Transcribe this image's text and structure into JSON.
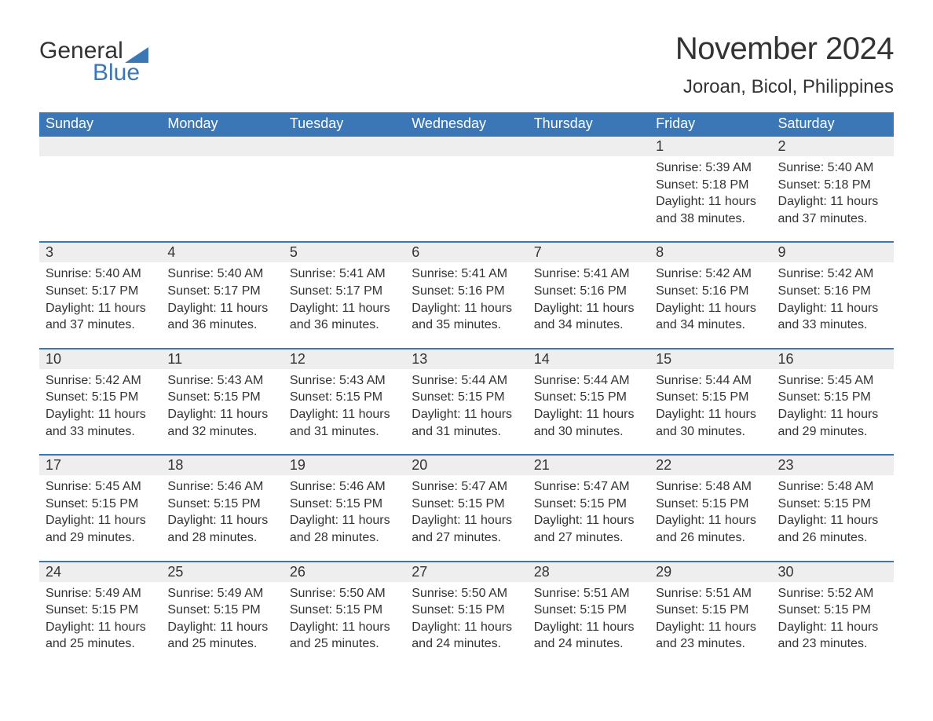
{
  "logo": {
    "word1": "General",
    "word2": "Blue"
  },
  "title": "November 2024",
  "location": "Joroan, Bicol, Philippines",
  "colors": {
    "header_bg": "#3b77b7",
    "header_text": "#ffffff",
    "daynum_bg": "#eeeeee",
    "daynum_border": "#3b77b7",
    "body_text": "#333333",
    "logo_blue": "#3b77b7",
    "page_bg": "#ffffff"
  },
  "typography": {
    "title_fontsize": 40,
    "location_fontsize": 24,
    "header_fontsize": 18,
    "daynum_fontsize": 18,
    "cell_fontsize": 16
  },
  "columns": [
    "Sunday",
    "Monday",
    "Tuesday",
    "Wednesday",
    "Thursday",
    "Friday",
    "Saturday"
  ],
  "weeks": [
    [
      null,
      null,
      null,
      null,
      null,
      {
        "day": "1",
        "sunrise": "5:39 AM",
        "sunset": "5:18 PM",
        "daylight_l1": "11 hours",
        "daylight_l2": "and 38 minutes."
      },
      {
        "day": "2",
        "sunrise": "5:40 AM",
        "sunset": "5:18 PM",
        "daylight_l1": "11 hours",
        "daylight_l2": "and 37 minutes."
      }
    ],
    [
      {
        "day": "3",
        "sunrise": "5:40 AM",
        "sunset": "5:17 PM",
        "daylight_l1": "11 hours",
        "daylight_l2": "and 37 minutes."
      },
      {
        "day": "4",
        "sunrise": "5:40 AM",
        "sunset": "5:17 PM",
        "daylight_l1": "11 hours",
        "daylight_l2": "and 36 minutes."
      },
      {
        "day": "5",
        "sunrise": "5:41 AM",
        "sunset": "5:17 PM",
        "daylight_l1": "11 hours",
        "daylight_l2": "and 36 minutes."
      },
      {
        "day": "6",
        "sunrise": "5:41 AM",
        "sunset": "5:16 PM",
        "daylight_l1": "11 hours",
        "daylight_l2": "and 35 minutes."
      },
      {
        "day": "7",
        "sunrise": "5:41 AM",
        "sunset": "5:16 PM",
        "daylight_l1": "11 hours",
        "daylight_l2": "and 34 minutes."
      },
      {
        "day": "8",
        "sunrise": "5:42 AM",
        "sunset": "5:16 PM",
        "daylight_l1": "11 hours",
        "daylight_l2": "and 34 minutes."
      },
      {
        "day": "9",
        "sunrise": "5:42 AM",
        "sunset": "5:16 PM",
        "daylight_l1": "11 hours",
        "daylight_l2": "and 33 minutes."
      }
    ],
    [
      {
        "day": "10",
        "sunrise": "5:42 AM",
        "sunset": "5:15 PM",
        "daylight_l1": "11 hours",
        "daylight_l2": "and 33 minutes."
      },
      {
        "day": "11",
        "sunrise": "5:43 AM",
        "sunset": "5:15 PM",
        "daylight_l1": "11 hours",
        "daylight_l2": "and 32 minutes."
      },
      {
        "day": "12",
        "sunrise": "5:43 AM",
        "sunset": "5:15 PM",
        "daylight_l1": "11 hours",
        "daylight_l2": "and 31 minutes."
      },
      {
        "day": "13",
        "sunrise": "5:44 AM",
        "sunset": "5:15 PM",
        "daylight_l1": "11 hours",
        "daylight_l2": "and 31 minutes."
      },
      {
        "day": "14",
        "sunrise": "5:44 AM",
        "sunset": "5:15 PM",
        "daylight_l1": "11 hours",
        "daylight_l2": "and 30 minutes."
      },
      {
        "day": "15",
        "sunrise": "5:44 AM",
        "sunset": "5:15 PM",
        "daylight_l1": "11 hours",
        "daylight_l2": "and 30 minutes."
      },
      {
        "day": "16",
        "sunrise": "5:45 AM",
        "sunset": "5:15 PM",
        "daylight_l1": "11 hours",
        "daylight_l2": "and 29 minutes."
      }
    ],
    [
      {
        "day": "17",
        "sunrise": "5:45 AM",
        "sunset": "5:15 PM",
        "daylight_l1": "11 hours",
        "daylight_l2": "and 29 minutes."
      },
      {
        "day": "18",
        "sunrise": "5:46 AM",
        "sunset": "5:15 PM",
        "daylight_l1": "11 hours",
        "daylight_l2": "and 28 minutes."
      },
      {
        "day": "19",
        "sunrise": "5:46 AM",
        "sunset": "5:15 PM",
        "daylight_l1": "11 hours",
        "daylight_l2": "and 28 minutes."
      },
      {
        "day": "20",
        "sunrise": "5:47 AM",
        "sunset": "5:15 PM",
        "daylight_l1": "11 hours",
        "daylight_l2": "and 27 minutes."
      },
      {
        "day": "21",
        "sunrise": "5:47 AM",
        "sunset": "5:15 PM",
        "daylight_l1": "11 hours",
        "daylight_l2": "and 27 minutes."
      },
      {
        "day": "22",
        "sunrise": "5:48 AM",
        "sunset": "5:15 PM",
        "daylight_l1": "11 hours",
        "daylight_l2": "and 26 minutes."
      },
      {
        "day": "23",
        "sunrise": "5:48 AM",
        "sunset": "5:15 PM",
        "daylight_l1": "11 hours",
        "daylight_l2": "and 26 minutes."
      }
    ],
    [
      {
        "day": "24",
        "sunrise": "5:49 AM",
        "sunset": "5:15 PM",
        "daylight_l1": "11 hours",
        "daylight_l2": "and 25 minutes."
      },
      {
        "day": "25",
        "sunrise": "5:49 AM",
        "sunset": "5:15 PM",
        "daylight_l1": "11 hours",
        "daylight_l2": "and 25 minutes."
      },
      {
        "day": "26",
        "sunrise": "5:50 AM",
        "sunset": "5:15 PM",
        "daylight_l1": "11 hours",
        "daylight_l2": "and 25 minutes."
      },
      {
        "day": "27",
        "sunrise": "5:50 AM",
        "sunset": "5:15 PM",
        "daylight_l1": "11 hours",
        "daylight_l2": "and 24 minutes."
      },
      {
        "day": "28",
        "sunrise": "5:51 AM",
        "sunset": "5:15 PM",
        "daylight_l1": "11 hours",
        "daylight_l2": "and 24 minutes."
      },
      {
        "day": "29",
        "sunrise": "5:51 AM",
        "sunset": "5:15 PM",
        "daylight_l1": "11 hours",
        "daylight_l2": "and 23 minutes."
      },
      {
        "day": "30",
        "sunrise": "5:52 AM",
        "sunset": "5:15 PM",
        "daylight_l1": "11 hours",
        "daylight_l2": "and 23 minutes."
      }
    ]
  ],
  "labels": {
    "sunrise_prefix": "Sunrise: ",
    "sunset_prefix": "Sunset: ",
    "daylight_prefix": "Daylight: "
  }
}
